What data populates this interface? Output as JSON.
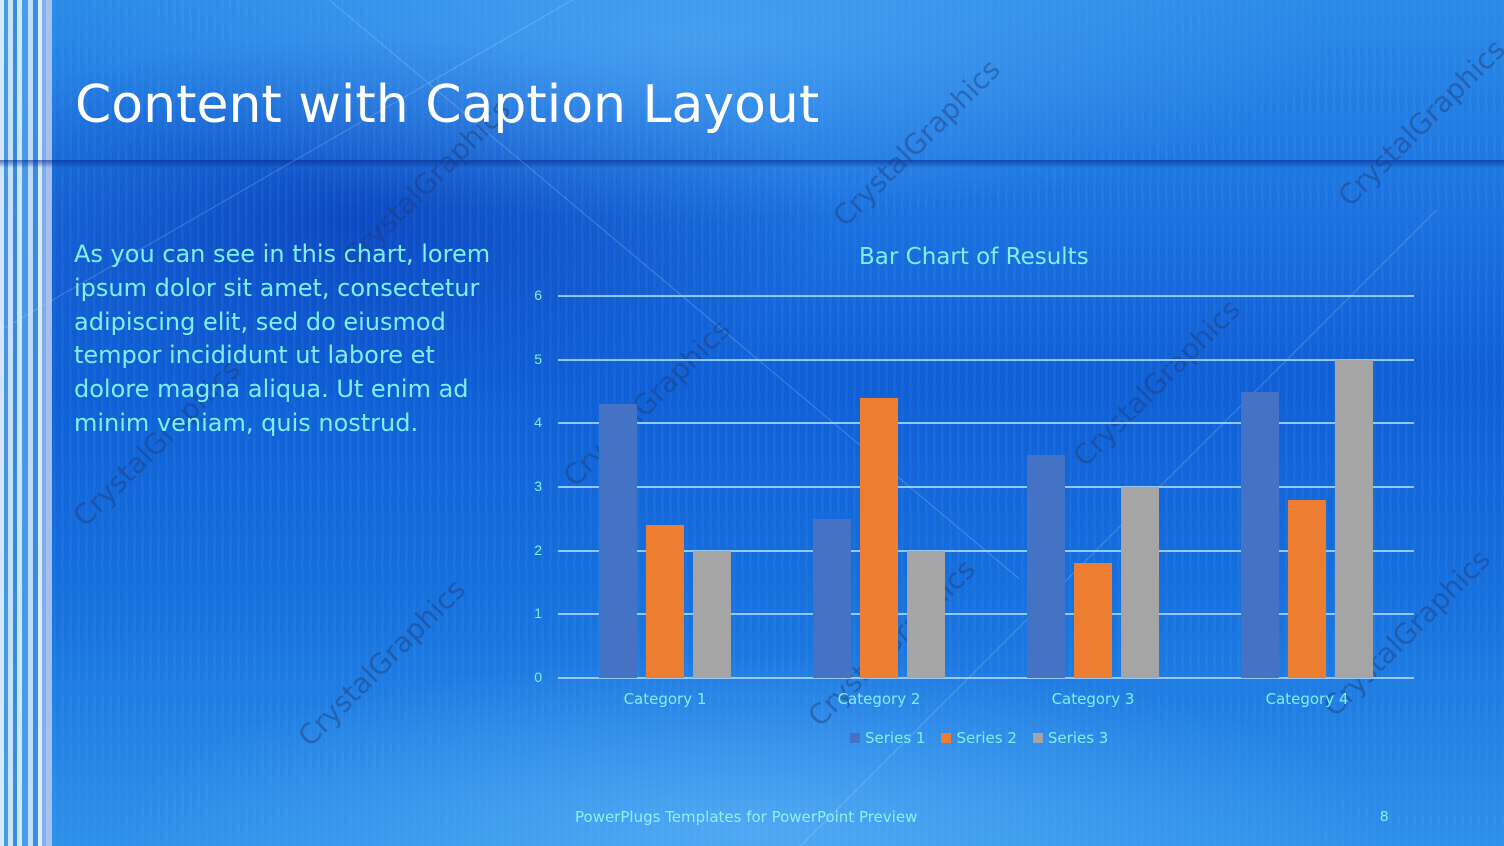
{
  "slide": {
    "title": "Content with Caption Layout",
    "caption": "As you can see in this chart, lorem ipsum dolor sit amet, consectetur adipiscing elit, sed do eiusmod tempor incididunt ut labore et dolore magna aliqua. Ut enim ad minim veniam, quis nostrud.",
    "footer": "PowerPlugs Templates for PowerPoint  Preview",
    "page_number": "8",
    "watermark": "CrystalGraphics"
  },
  "colors": {
    "series1": "#4472c4",
    "series2": "#ed7d31",
    "series3": "#a5a5a5",
    "text_accent": "#7ff0f0",
    "gridline": "#a9d8ff"
  },
  "chart_data": {
    "type": "bar",
    "title": "Bar Chart of Results",
    "xlabel": "",
    "ylabel": "",
    "categories": [
      "Category 1",
      "Category 2",
      "Category 3",
      "Category 4"
    ],
    "series": [
      {
        "name": "Series 1",
        "values": [
          4.3,
          2.5,
          3.5,
          4.5
        ]
      },
      {
        "name": "Series 2",
        "values": [
          2.4,
          4.4,
          1.8,
          2.8
        ]
      },
      {
        "name": "Series 3",
        "values": [
          2.0,
          2.0,
          3.0,
          5.0
        ]
      }
    ],
    "ylim": [
      0,
      6
    ],
    "yticks": [
      "0",
      "1",
      "2",
      "3",
      "4",
      "5",
      "6"
    ],
    "grid": true,
    "legend_position": "bottom"
  }
}
